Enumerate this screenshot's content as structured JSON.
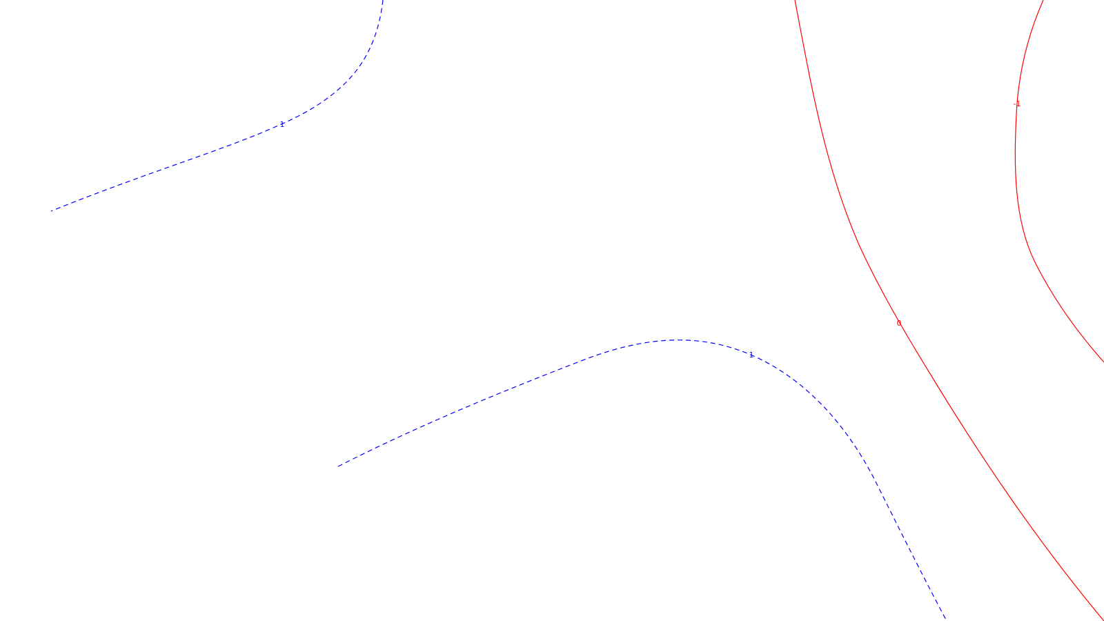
{
  "contours": [
    {
      "id": "neg-contour-upper-left",
      "label": "1",
      "color": "#0000ff",
      "style": "dashed"
    },
    {
      "id": "neg-contour-center",
      "label": "1",
      "color": "#0000ff",
      "style": "dashed"
    },
    {
      "id": "zero-contour",
      "label": "0",
      "color": "#ff0000",
      "style": "solid"
    },
    {
      "id": "pos-contour-right",
      "label": "-1",
      "color": "#ff0000",
      "style": "solid"
    }
  ],
  "background": "#ffffff"
}
